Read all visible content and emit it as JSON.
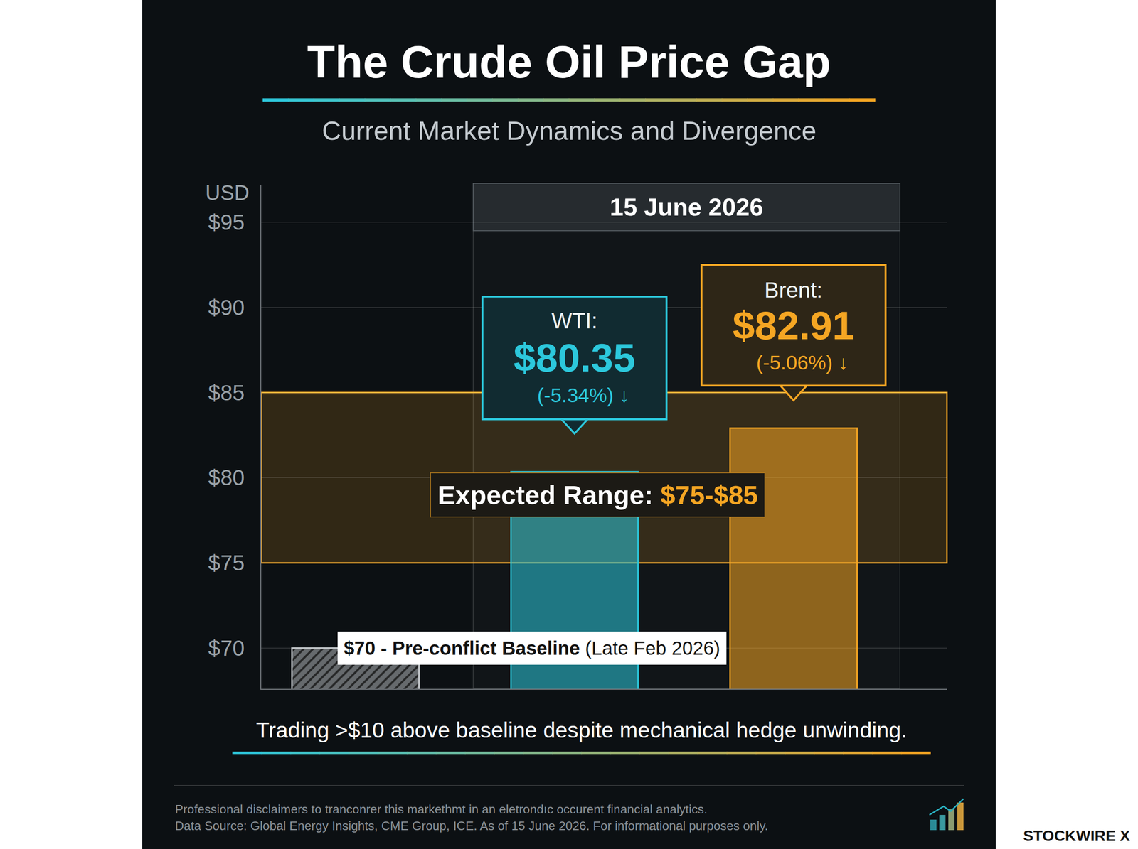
{
  "chart_data": {
    "type": "bar",
    "title": "The Crude Oil Price Gap",
    "subtitle": "Current Market Dynamics and Divergence",
    "date": "15 June 2026",
    "ylabel": "USD",
    "categories": [
      null,
      null,
      null
    ],
    "names": [
      "$70 - Pre-conflict Baseline",
      "WTI:",
      "Brent:"
    ],
    "values": [
      70,
      80.35,
      82.91
    ],
    "value_labels": [
      null,
      "$80.35",
      "$82.91"
    ],
    "notes": [
      "(Late Feb 2026)",
      "(-5.34%) ↓",
      "(-5.06%) ↓"
    ],
    "colors": [
      "#6a6e72",
      "#2cc8dc",
      "#f5a623"
    ],
    "data_labels": true,
    "band": [
      75,
      85
    ],
    "band_label": "Expected Range:",
    "band_value_label": "$75-$85",
    "ylim": [
      67.6,
      97.2
    ],
    "yticks": [
      {
        "value": 70,
        "label": "$70"
      },
      {
        "value": 75,
        "label": "$75"
      },
      {
        "value": 80,
        "label": "$80"
      },
      {
        "value": 85,
        "label": "$85"
      },
      {
        "value": 90,
        "label": "$90"
      },
      {
        "value": 95,
        "label": "$95"
      }
    ],
    "grid": true,
    "tick_labels": "y",
    "footer": "Trading >$10 above baseline despite mechanical hedge unwinding.",
    "disclaimer": [
      "Professional disclaimers to tranconrer this markethmt in an eletrondıc occurent financial analytics.",
      "Data Source: Global Energy Insights, CME Group, ICE. As of 15 June 2026. For informational purposes only."
    ],
    "watermark": "STOCKWIRE X"
  }
}
